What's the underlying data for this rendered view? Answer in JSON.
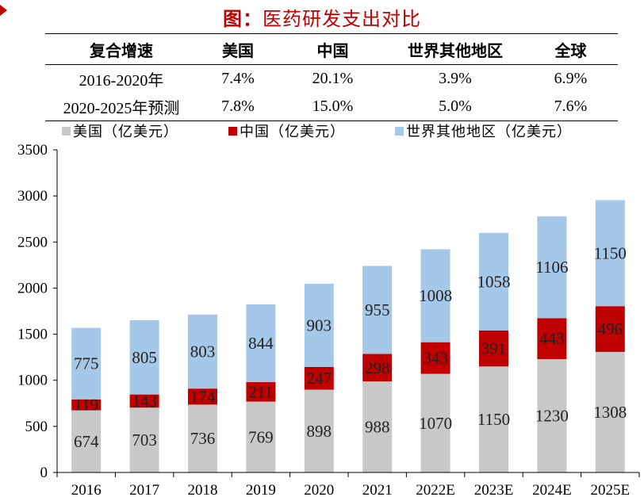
{
  "title": {
    "lead": "图：",
    "text": "医药研发支出对比"
  },
  "table": {
    "headers": [
      "复合增速",
      "美国",
      "中国",
      "世界其他地区",
      "全球"
    ],
    "rows": [
      [
        "2016-2020年",
        "7.4%",
        "20.1%",
        "3.9%",
        "6.9%"
      ],
      [
        "2020-2025年预测",
        "7.8%",
        "15.0%",
        "5.0%",
        "7.6%"
      ]
    ]
  },
  "chart_data": {
    "type": "bar",
    "stacked": true,
    "categories": [
      "2016",
      "2017",
      "2018",
      "2019",
      "2020",
      "2021",
      "2022E",
      "2023E",
      "2024E",
      "2025E"
    ],
    "series": [
      {
        "name": "美国（亿美元）",
        "color": "#c8c8c8",
        "values": [
          674,
          703,
          736,
          769,
          898,
          988,
          1070,
          1150,
          1230,
          1308
        ]
      },
      {
        "name": "中国（亿美元）",
        "color": "#c00000",
        "values": [
          119,
          143,
          174,
          211,
          247,
          298,
          343,
          391,
          443,
          496
        ]
      },
      {
        "name": "世界其他地区（亿美元）",
        "color": "#a6c8e8",
        "values": [
          775,
          805,
          803,
          844,
          903,
          955,
          1008,
          1058,
          1106,
          1150
        ]
      }
    ],
    "ylim": [
      0,
      3500
    ],
    "yticks": [
      0,
      500,
      1000,
      1500,
      2000,
      2500,
      3000,
      3500
    ],
    "legend_position": "top",
    "grid": false,
    "xlabel": "",
    "ylabel": ""
  }
}
